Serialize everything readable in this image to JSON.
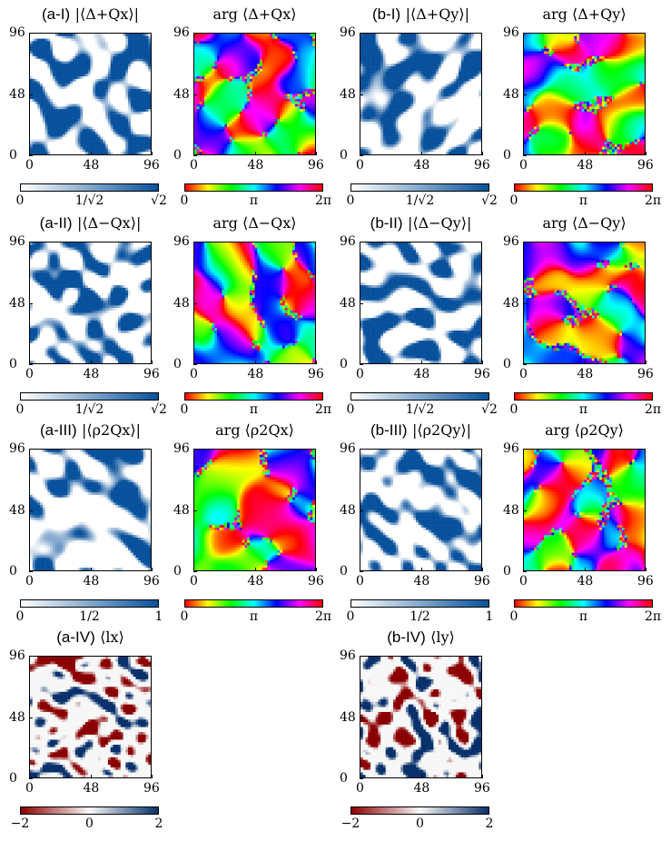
{
  "figure": {
    "rows": [
      {
        "panels": [
          {
            "label": "(a-I)",
            "math": "|⟨Δ+Qx⟩|",
            "kind": "amp",
            "cbar_ticks": [
              "0",
              "1/√2",
              "√2"
            ]
          },
          {
            "label": "",
            "math": "arg ⟨Δ+Qx⟩",
            "kind": "phase",
            "cbar_ticks": [
              "0",
              "π",
              "2π"
            ]
          },
          {
            "label": "(b-I)",
            "math": "|⟨Δ+Qy⟩|",
            "kind": "amp",
            "cbar_ticks": [
              "0",
              "1/√2",
              "√2"
            ]
          },
          {
            "label": "",
            "math": "arg ⟨Δ+Qy⟩",
            "kind": "phase",
            "cbar_ticks": [
              "0",
              "π",
              "2π"
            ]
          }
        ]
      },
      {
        "panels": [
          {
            "label": "(a-II)",
            "math": "|⟨Δ−Qx⟩|",
            "kind": "amp",
            "cbar_ticks": [
              "0",
              "1/√2",
              "√2"
            ]
          },
          {
            "label": "",
            "math": "arg ⟨Δ−Qx⟩",
            "kind": "phase",
            "cbar_ticks": [
              "0",
              "π",
              "2π"
            ]
          },
          {
            "label": "(b-II)",
            "math": "|⟨Δ−Qy⟩|",
            "kind": "amp",
            "cbar_ticks": [
              "0",
              "1/√2",
              "√2"
            ]
          },
          {
            "label": "",
            "math": "arg ⟨Δ−Qy⟩",
            "kind": "phase",
            "cbar_ticks": [
              "0",
              "π",
              "2π"
            ]
          }
        ]
      },
      {
        "panels": [
          {
            "label": "(a-III)",
            "math": "|⟨ρ2Qx⟩|",
            "kind": "amp",
            "cbar_ticks": [
              "0",
              "1/2",
              "1"
            ]
          },
          {
            "label": "",
            "math": "arg ⟨ρ2Qx⟩",
            "kind": "phase",
            "cbar_ticks": [
              "0",
              "π",
              "2π"
            ]
          },
          {
            "label": "(b-III)",
            "math": "|⟨ρ2Qy⟩|",
            "kind": "amp",
            "cbar_ticks": [
              "0",
              "1/2",
              "1"
            ]
          },
          {
            "label": "",
            "math": "arg ⟨ρ2Qy⟩",
            "kind": "phase",
            "cbar_ticks": [
              "0",
              "π",
              "2π"
            ]
          }
        ]
      },
      {
        "panels": [
          {
            "label": "(a-IV)",
            "math": "⟨lx⟩",
            "kind": "div",
            "cbar_ticks": [
              "−2",
              "0",
              "2"
            ]
          },
          null,
          {
            "label": "(b-IV)",
            "math": "⟨ly⟩",
            "kind": "div",
            "cbar_ticks": [
              "−2",
              "0",
              "2"
            ]
          },
          null
        ]
      }
    ]
  },
  "chart_data": {
    "type": "heatmap",
    "grid_size": 96,
    "x_ticks": [
      "0",
      "48",
      "96"
    ],
    "y_ticks": [
      "0",
      "48",
      "96"
    ],
    "xlim": [
      0,
      96
    ],
    "ylim": [
      0,
      96
    ],
    "colorbars": {
      "amp_delta": {
        "range": [
          0,
          1.414
        ],
        "ticks": [
          "0",
          "1/√2",
          "√2"
        ],
        "colors": [
          "#ffffff",
          "#08519c"
        ]
      },
      "amp_rho": {
        "range": [
          0,
          1
        ],
        "ticks": [
          "0",
          "1/2",
          "1"
        ],
        "colors": [
          "#ffffff",
          "#08519c"
        ]
      },
      "phase": {
        "range": [
          0,
          6.283
        ],
        "ticks": [
          "0",
          "π",
          "2π"
        ],
        "colors": [
          "#ff0000",
          "#ffff00",
          "#00ff00",
          "#00ffff",
          "#0000ff",
          "#ff00ff",
          "#ff0000"
        ]
      },
      "orbital": {
        "range": [
          -2,
          2
        ],
        "ticks": [
          "−2",
          "0",
          "2"
        ],
        "colors": [
          "#8b0000",
          "#f7f7f7",
          "#08306b"
        ]
      }
    }
  }
}
